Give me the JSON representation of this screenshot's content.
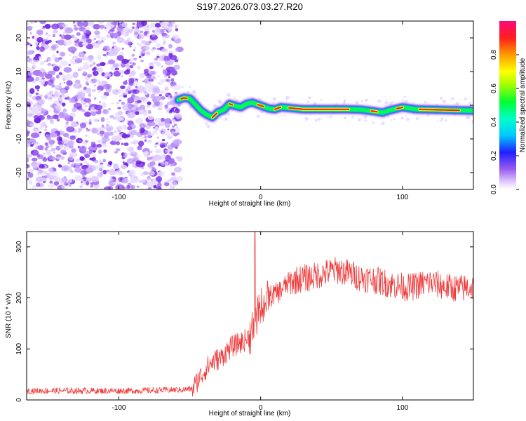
{
  "chart_data": [
    {
      "type": "heatmap",
      "title": "S197.2026.073.03.27.R20",
      "xlabel": "Height of straight line (km)",
      "ylabel": "Frequency (Hz)",
      "xlim": [
        -165,
        150
      ],
      "ylim": [
        -25,
        25
      ],
      "xticks": [
        -100,
        0,
        100
      ],
      "yticks": [
        -20,
        -10,
        0,
        10,
        20
      ],
      "noise_region_x": [
        -165,
        -60
      ],
      "signal_start_x": -60,
      "frequency_track": {
        "x": [
          -58,
          -54,
          -50,
          -46,
          -42,
          -38,
          -34,
          -30,
          -26,
          -22,
          -18,
          -14,
          -10,
          -6,
          -2,
          2,
          6,
          10,
          14,
          20,
          30,
          40,
          50,
          60,
          70,
          80,
          86,
          90,
          96,
          100,
          110,
          120,
          130,
          140,
          150
        ],
        "y": [
          1.6,
          2.2,
          2.0,
          0.2,
          -1.6,
          -2.8,
          -3.6,
          -2.0,
          -1.4,
          0.4,
          -0.2,
          -0.6,
          0.4,
          0.8,
          0.2,
          -0.4,
          -1.0,
          -1.2,
          -0.6,
          -0.8,
          -1.2,
          -1.2,
          -1.2,
          -1.2,
          -1.3,
          -1.8,
          -2.2,
          -1.6,
          -1.0,
          -0.6,
          -1.2,
          -1.3,
          -1.4,
          -1.5,
          -1.6
        ]
      },
      "colorbar": {
        "label": "Normalized spectral amplitude",
        "range": [
          0,
          1
        ],
        "ticks": [
          "0.0",
          "0.2",
          "0.4",
          "0.6",
          "0.8"
        ]
      }
    },
    {
      "type": "line",
      "xlabel": "Height of straight line (km)",
      "ylabel": "SNR (10 * v/v)",
      "xlim": [
        -165,
        150
      ],
      "ylim": [
        0,
        330
      ],
      "xticks": [
        -100,
        0,
        100
      ],
      "yticks": [
        0,
        100,
        200,
        300
      ],
      "color": "#f03c3c",
      "series": [
        {
          "name": "SNR",
          "x": [
            -165,
            -150,
            -130,
            -110,
            -90,
            -70,
            -55,
            -48,
            -44,
            -40,
            -36,
            -32,
            -28,
            -24,
            -20,
            -16,
            -12,
            -8,
            -5,
            -3,
            -1,
            2,
            5,
            8,
            12,
            16,
            20,
            25,
            30,
            35,
            40,
            45,
            50,
            55,
            60,
            65,
            70,
            75,
            80,
            85,
            90,
            95,
            100,
            105,
            110,
            115,
            120,
            125,
            130,
            135,
            140,
            145,
            150
          ],
          "values": [
            18,
            18,
            18,
            18,
            18,
            19,
            20,
            22,
            40,
            55,
            70,
            78,
            82,
            95,
            105,
            110,
            115,
            125,
            140,
            160,
            175,
            190,
            200,
            205,
            210,
            220,
            230,
            235,
            238,
            240,
            245,
            248,
            252,
            255,
            250,
            246,
            240,
            238,
            236,
            232,
            228,
            225,
            222,
            220,
            224,
            228,
            230,
            226,
            222,
            220,
            218,
            220,
            222
          ]
        }
      ],
      "spike": {
        "x": -4,
        "value": 330
      }
    }
  ]
}
